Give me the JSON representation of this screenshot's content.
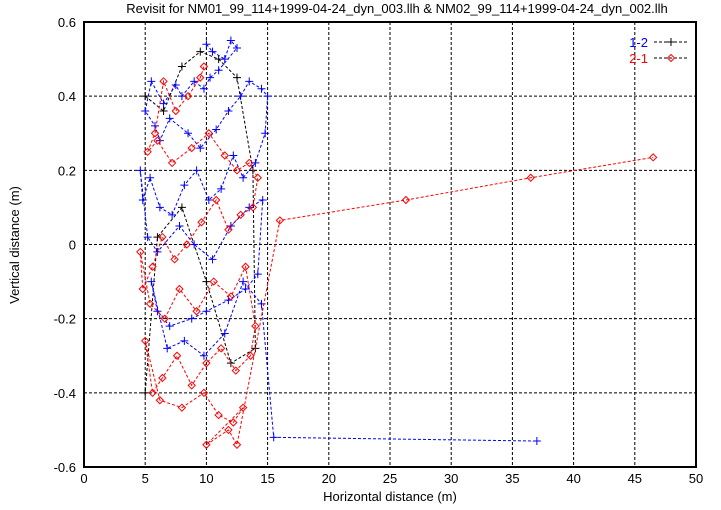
{
  "chart_data": {
    "type": "scatter",
    "title": "Revisit for NM01_99_114+1999-04-24_dyn_003.llh & NM02_99_114+1999-04-24_dyn_002.llh",
    "xlabel": "Horizontal distance (m)",
    "ylabel": "Vertical distance (m)",
    "xlim": [
      0,
      50
    ],
    "ylim": [
      -0.6,
      0.6
    ],
    "xticks": [
      "0",
      "5",
      "10",
      "15",
      "20",
      "25",
      "30",
      "35",
      "40",
      "45",
      "50"
    ],
    "yticks": [
      "-0.6",
      "-0.4",
      "-0.2",
      "0",
      "0.2",
      "0.4",
      "0.6"
    ],
    "grid": true,
    "legend_position": "top-right",
    "series": [
      {
        "name": "1-2",
        "color": "#0000ff",
        "marker": "plus",
        "x": [
          10.0,
          10.5,
          11.5,
          12.0,
          12.5,
          11.0,
          10.3,
          9.8,
          9.0,
          8.0,
          7.5,
          6.5,
          5.5,
          5.0,
          5.8,
          6.2,
          7.0,
          8.5,
          9.5,
          10.8,
          11.8,
          12.8,
          13.5,
          14.5,
          15.0,
          14.8,
          14.0,
          13.0,
          12.2,
          11.2,
          10.2,
          9.2,
          8.2,
          7.2,
          6.2,
          5.4,
          4.8,
          4.6,
          5.2,
          6.0,
          7.8,
          9.0,
          10.5,
          12.0,
          13.5,
          14.6,
          14.2,
          13.2,
          11.8,
          10.0,
          8.8,
          7.0,
          6.0,
          5.5,
          6.8,
          8.2,
          9.8,
          11.5,
          13.0,
          14.5,
          15.5,
          37.0
        ],
        "y": [
          0.54,
          0.52,
          0.5,
          0.55,
          0.53,
          0.47,
          0.45,
          0.42,
          0.44,
          0.4,
          0.43,
          0.38,
          0.44,
          0.36,
          0.32,
          0.28,
          0.34,
          0.3,
          0.26,
          0.31,
          0.36,
          0.4,
          0.44,
          0.42,
          0.4,
          0.3,
          0.22,
          0.18,
          0.24,
          0.15,
          0.12,
          0.2,
          0.16,
          0.08,
          0.1,
          0.18,
          0.12,
          0.2,
          0.02,
          -0.02,
          0.05,
          0.0,
          -0.04,
          0.05,
          0.1,
          0.12,
          -0.08,
          -0.12,
          -0.15,
          -0.18,
          -0.2,
          -0.22,
          -0.18,
          -0.1,
          -0.28,
          -0.26,
          -0.3,
          -0.24,
          -0.1,
          -0.16,
          -0.52,
          -0.53
        ]
      },
      {
        "name": "2-1",
        "color": "#ff0000",
        "marker": "diamond",
        "x": [
          9.8,
          9.5,
          8.5,
          7.5,
          6.5,
          5.8,
          5.2,
          6.0,
          7.2,
          8.8,
          10.2,
          11.5,
          12.5,
          13.5,
          14.2,
          13.8,
          12.8,
          11.8,
          10.8,
          9.6,
          8.4,
          7.4,
          6.4,
          5.6,
          4.8,
          4.6,
          5.4,
          6.6,
          7.8,
          9.2,
          10.6,
          12.0,
          13.2,
          14.0,
          13.6,
          12.4,
          11.2,
          10.0,
          8.8,
          7.6,
          6.4,
          5.6,
          5.0,
          6.2,
          8.0,
          9.8,
          11.0,
          12.2,
          13.0,
          10.0,
          11.8,
          12.5,
          16.0,
          26.3,
          36.5,
          46.5
        ],
        "y": [
          0.48,
          0.45,
          0.4,
          0.36,
          0.44,
          0.3,
          0.25,
          0.28,
          0.22,
          0.26,
          0.3,
          0.24,
          0.2,
          0.22,
          0.18,
          0.1,
          0.08,
          0.04,
          0.12,
          0.06,
          0.0,
          -0.04,
          0.02,
          -0.06,
          -0.12,
          -0.02,
          -0.16,
          -0.2,
          -0.12,
          -0.18,
          -0.1,
          -0.14,
          -0.06,
          -0.22,
          -0.3,
          -0.34,
          -0.28,
          -0.32,
          -0.38,
          -0.3,
          -0.36,
          -0.4,
          -0.26,
          -0.42,
          -0.44,
          -0.4,
          -0.46,
          -0.48,
          -0.44,
          -0.54,
          -0.5,
          -0.54,
          0.065,
          0.12,
          0.18,
          0.235
        ]
      },
      {
        "name": "",
        "color": "#000000",
        "marker": "plus",
        "x": [
          5.0,
          6.5,
          8.0,
          9.5,
          11.0,
          12.5,
          13.8,
          14.0,
          12.0,
          10.0,
          8.0,
          6.0,
          5.0
        ],
        "y": [
          0.4,
          0.36,
          0.48,
          0.52,
          0.5,
          0.45,
          0.2,
          -0.28,
          -0.32,
          -0.1,
          0.1,
          0.02,
          -0.4
        ]
      }
    ]
  }
}
